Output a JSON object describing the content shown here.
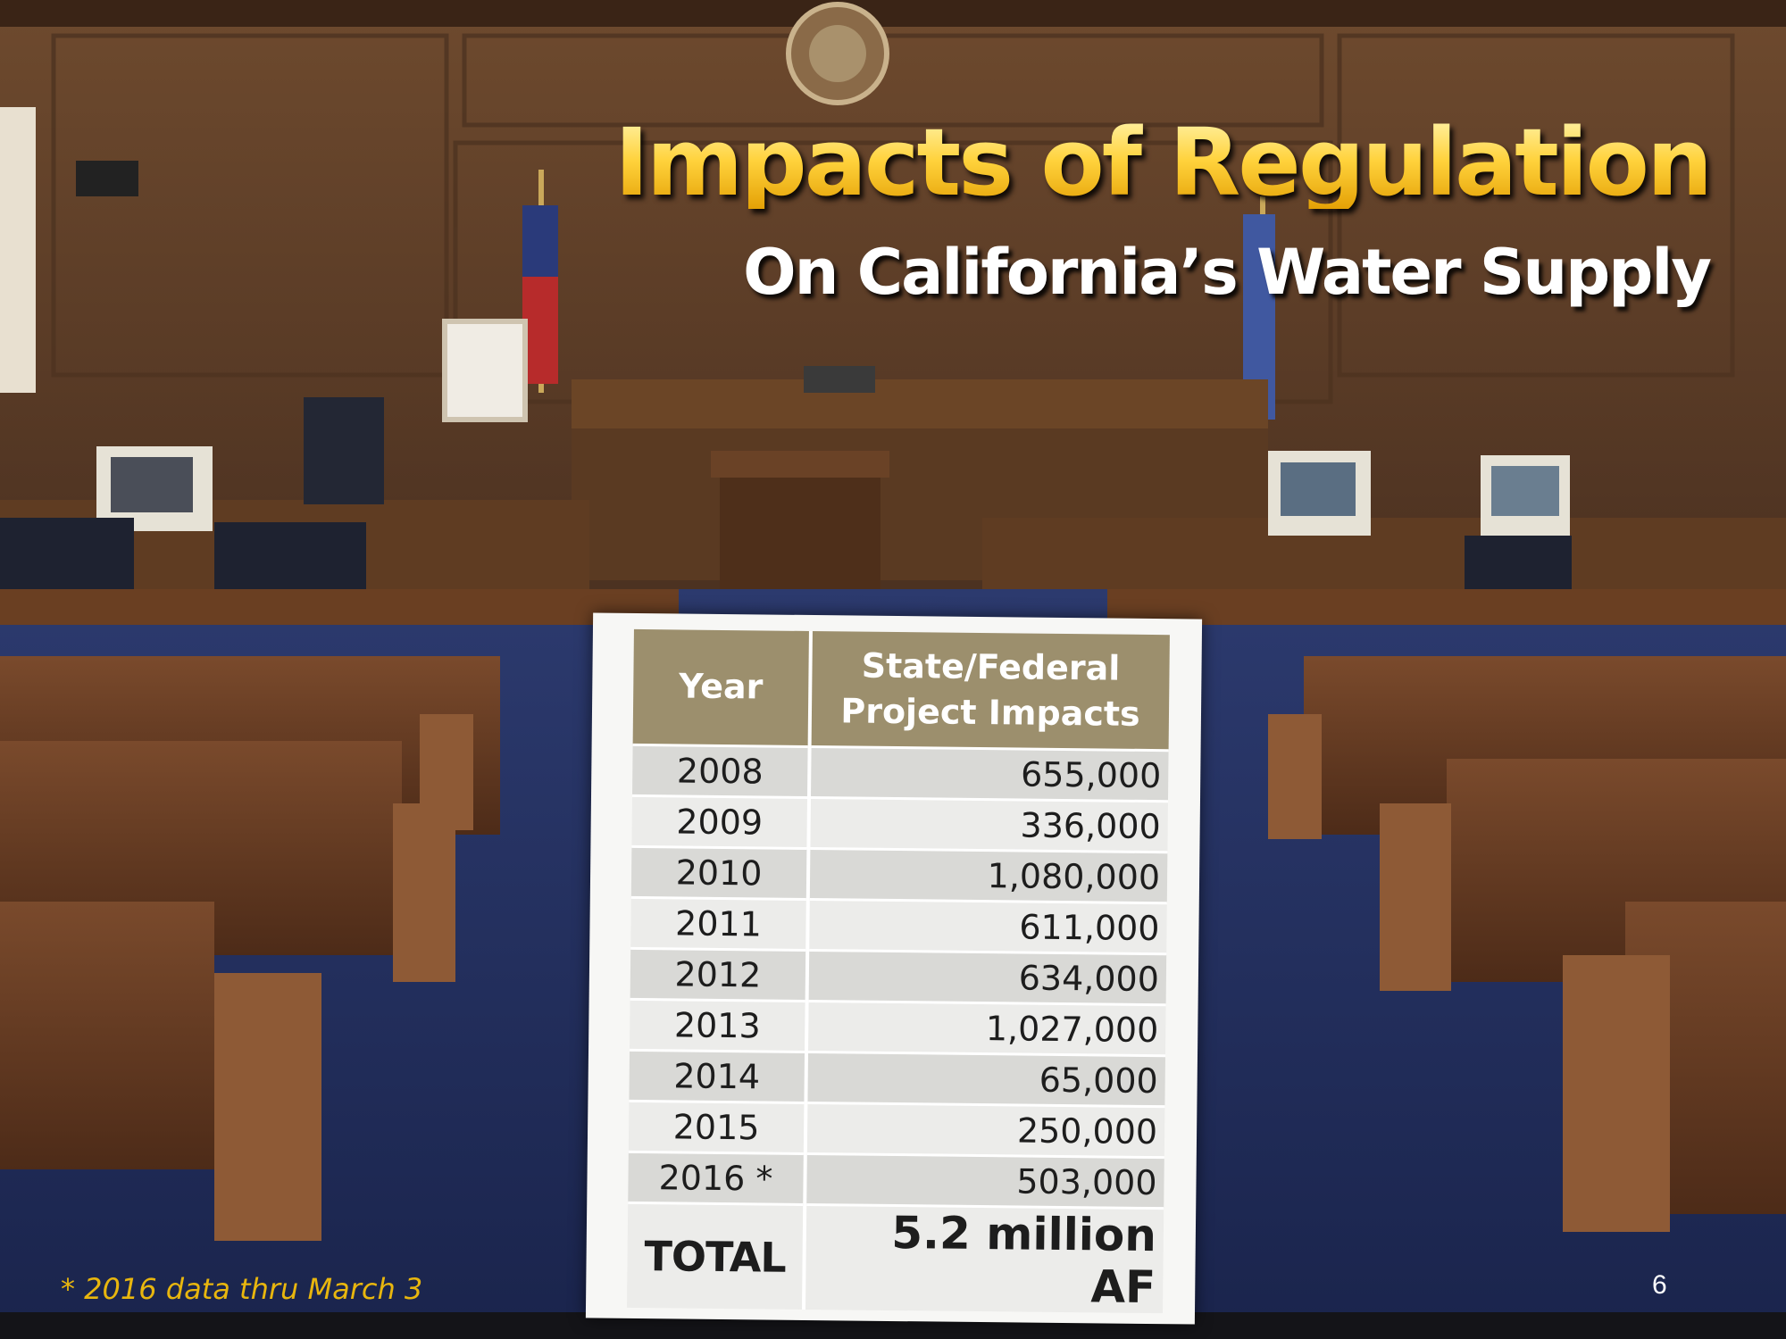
{
  "slide": {
    "title": "Impacts of Regulation",
    "subtitle": "On California’s Water Supply",
    "background": "courtroom photo"
  },
  "table": {
    "headers": [
      "Year",
      "State/Federal Project Impacts"
    ],
    "rows": [
      {
        "year": "2008",
        "value": "655,000"
      },
      {
        "year": "2009",
        "value": "336,000"
      },
      {
        "year": "2010",
        "value": "1,080,000"
      },
      {
        "year": "2011",
        "value": "611,000"
      },
      {
        "year": "2012",
        "value": "634,000"
      },
      {
        "year": "2013",
        "value": "1,027,000"
      },
      {
        "year": "2014",
        "value": "65,000"
      },
      {
        "year": "2015",
        "value": "250,000"
      },
      {
        "year": "2016 *",
        "value": "503,000"
      }
    ],
    "total": {
      "label": "TOTAL",
      "value": "5.2 million AF"
    }
  },
  "footnote": "* 2016 data thru March 3",
  "page_number": "6",
  "colors": {
    "title_gold": "#ffd23c",
    "header_bg": "#9c8f6d",
    "footnote": "#e8b60e"
  }
}
